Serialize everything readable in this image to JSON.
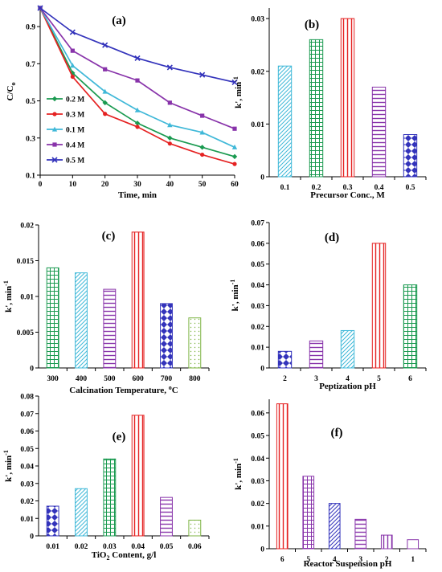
{
  "colors": {
    "blue": "#3333bb",
    "cyan": "#3fb8d8",
    "green": "#1a9a50",
    "red": "#e52222",
    "purple": "#8833aa",
    "olive": "#7cb342"
  },
  "chart_data": [
    {
      "id": "a",
      "type": "line",
      "panel_label": "(a)",
      "xlabel": "Time, min",
      "ylabel_main": "C/C",
      "ylabel_sub": "o",
      "x": [
        0,
        10,
        20,
        30,
        40,
        50,
        60
      ],
      "xticks": [
        "0",
        "10",
        "20",
        "30",
        "40",
        "50",
        "60"
      ],
      "xlim": [
        0,
        60
      ],
      "ylim": [
        0.1,
        1.0
      ],
      "yticks": [
        "0.1",
        "0.3",
        "0.5",
        "0.7",
        "0.9"
      ],
      "legend_position": "left",
      "series": [
        {
          "name": "0.2 M",
          "color": "green",
          "marker": "diamond",
          "values": [
            1.0,
            0.65,
            0.49,
            0.38,
            0.3,
            0.25,
            0.2
          ]
        },
        {
          "name": "0.3 M",
          "color": "red",
          "marker": "circle",
          "values": [
            1.0,
            0.63,
            0.43,
            0.36,
            0.27,
            0.21,
            0.16
          ]
        },
        {
          "name": "0.1 M",
          "color": "cyan",
          "marker": "triangle",
          "values": [
            1.0,
            0.69,
            0.55,
            0.45,
            0.37,
            0.33,
            0.25
          ]
        },
        {
          "name": "0.4 M",
          "color": "purple",
          "marker": "square",
          "values": [
            1.0,
            0.77,
            0.67,
            0.61,
            0.49,
            0.42,
            0.35
          ]
        },
        {
          "name": "0.5 M",
          "color": "blue",
          "marker": "x",
          "values": [
            1.0,
            0.87,
            0.8,
            0.73,
            0.68,
            0.64,
            0.6
          ]
        }
      ]
    },
    {
      "id": "b",
      "type": "bar",
      "panel_label": "(b)",
      "xlabel": "Precursor Conc., M",
      "ylabel_main": "k', min",
      "ylabel_sup": "-1",
      "categories": [
        "0.1",
        "0.2",
        "0.3",
        "0.4",
        "0.5"
      ],
      "values": [
        0.021,
        0.026,
        0.03,
        0.017,
        0.008
      ],
      "bar_colors": [
        "cyan",
        "green",
        "red",
        "purple",
        "blue"
      ],
      "patterns": [
        "diag",
        "grid",
        "vert",
        "horiz",
        "diamond"
      ],
      "ylim": [
        0,
        0.032
      ],
      "yticks": [
        "0",
        "0.01",
        "0.02",
        "0.03"
      ]
    },
    {
      "id": "c",
      "type": "bar",
      "panel_label": "(c)",
      "xlabel_main": "Calcination Temperature,",
      "xlabel_sup": "o",
      "xlabel_unit": "C",
      "ylabel_main": "k', min",
      "ylabel_sup": "-1",
      "categories": [
        "300",
        "400",
        "500",
        "600",
        "700",
        "800"
      ],
      "values": [
        0.014,
        0.0133,
        0.011,
        0.019,
        0.009,
        0.007
      ],
      "bar_colors": [
        "green",
        "cyan",
        "purple",
        "red",
        "blue",
        "olive"
      ],
      "patterns": [
        "grid",
        "diag",
        "horiz",
        "vert",
        "diamond",
        "dots"
      ],
      "ylim": [
        0,
        0.02
      ],
      "yticks": [
        "0",
        "0.005",
        "0.01",
        "0.015",
        "0.02"
      ]
    },
    {
      "id": "d",
      "type": "bar",
      "panel_label": "(d)",
      "xlabel": "Peptization pH",
      "ylabel_main": "k', min",
      "ylabel_sup": "-1",
      "categories": [
        "2",
        "3",
        "4",
        "5",
        "6"
      ],
      "values": [
        0.008,
        0.013,
        0.018,
        0.06,
        0.04
      ],
      "bar_colors": [
        "blue",
        "purple",
        "cyan",
        "red",
        "green"
      ],
      "patterns": [
        "diamond",
        "horiz",
        "diag",
        "vert",
        "grid"
      ],
      "ylim": [
        0,
        0.07
      ],
      "yticks": [
        "0",
        "0.01",
        "0.02",
        "0.03",
        "0.04",
        "0.05",
        "0.06",
        "0.07"
      ]
    },
    {
      "id": "e",
      "type": "bar",
      "panel_label": "(e)",
      "xlabel_main": "TiO",
      "xlabel_sub": "2",
      "xlabel_rest": " Content, g/l",
      "ylabel_main": "k', min",
      "ylabel_sup": "-1",
      "categories": [
        "0.01",
        "0.02",
        "0.03",
        "0.04",
        "0.05",
        "0.06"
      ],
      "values": [
        0.017,
        0.027,
        0.044,
        0.069,
        0.022,
        0.009
      ],
      "bar_colors": [
        "blue",
        "cyan",
        "green",
        "red",
        "purple",
        "olive"
      ],
      "patterns": [
        "diamond",
        "diag",
        "grid",
        "vert",
        "horiz",
        "dots"
      ],
      "ylim": [
        0,
        0.08
      ],
      "yticks": [
        "0",
        "0.01",
        "0.02",
        "0.03",
        "0.04",
        "0.05",
        "0.06",
        "0.07",
        "0.08"
      ]
    },
    {
      "id": "f",
      "type": "bar",
      "panel_label": "(f)",
      "xlabel": "Reactor Suspension pH",
      "ylabel_main": "k', min",
      "ylabel_sup": "-1",
      "categories": [
        "6",
        "5",
        "4",
        "3",
        "2",
        "1"
      ],
      "values": [
        0.064,
        0.032,
        0.02,
        0.013,
        0.006,
        0.004
      ],
      "bar_colors": [
        "red",
        "purple",
        "blue",
        "purple",
        "purple",
        "purple"
      ],
      "patterns": [
        "vert",
        "grid",
        "diag",
        "horiz",
        "vert",
        "none"
      ],
      "ylim": [
        0,
        0.066
      ],
      "yticks": [
        "0",
        "0.01",
        "0.02",
        "0.03",
        "0.04",
        "0.05",
        "0.06"
      ]
    }
  ]
}
